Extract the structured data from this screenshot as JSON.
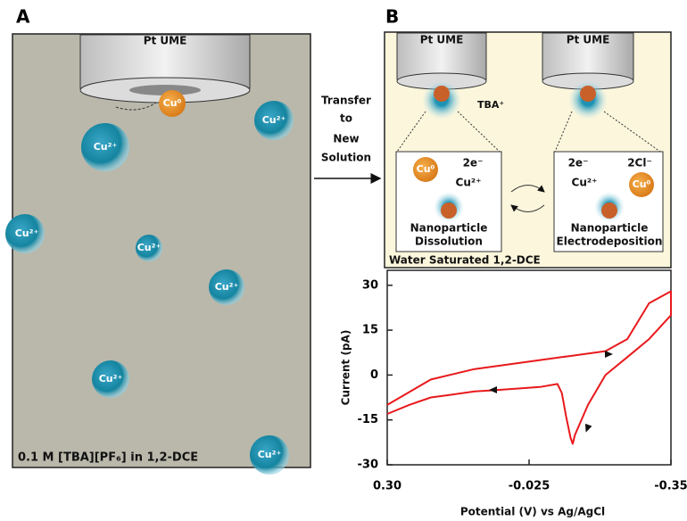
{
  "panel_a": {
    "label": "A",
    "electrode_label": "Pt UME",
    "particle_label": "Cu⁰",
    "ions": [
      "Cu²⁺",
      "Cu²⁺",
      "Cu²⁺",
      "Cu²⁺",
      "Cu²⁺",
      "Cu²⁺",
      "Cu²⁺"
    ],
    "caption": "0.1 M [TBA][PF₆] in 1,2-DCE"
  },
  "transfer_text": [
    "Transfer",
    "to",
    "New",
    "Solution"
  ],
  "panel_b": {
    "label": "B",
    "electrode_labels": [
      "Pt UME",
      "Pt UME"
    ],
    "cation_label": "TBA⁺",
    "dissolution": {
      "particle": "Cu⁰",
      "electrons": "2e⁻",
      "ion": "Cu²⁺",
      "caption": [
        "Nanoparticle",
        "Dissolution"
      ]
    },
    "deposition": {
      "electrons": "2e⁻",
      "chloride": "2Cl⁻",
      "ion": "Cu²⁺",
      "particle": "Cu⁰",
      "caption": [
        "Nanoparticle",
        "Electrodeposition"
      ]
    },
    "solvent_label": "Water Saturated 1,2-DCE"
  },
  "chart_data": {
    "type": "line",
    "x_label": "Potential (V) vs Ag/AgCl",
    "y_label": "Current (pA)",
    "xlim": [
      0.3,
      -0.35
    ],
    "ylim": [
      -30,
      35
    ],
    "xticks": [
      {
        "value": 0.3,
        "label": "0.30"
      },
      -0.025,
      -0.35
    ],
    "yticks": [
      -30,
      -15,
      0,
      15,
      30
    ],
    "series": [
      {
        "color": "#e8191c",
        "x": [
          0.3,
          0.25,
          0.2,
          0.15,
          0.1,
          0.05,
          0.0,
          -0.05,
          -0.09,
          -0.1,
          -0.11,
          -0.12,
          -0.125,
          -0.13,
          -0.16,
          -0.2,
          -0.25,
          -0.3,
          -0.35,
          -0.35,
          -0.3,
          -0.25,
          -0.2,
          -0.1,
          0.0,
          0.1,
          0.2,
          0.3
        ],
        "values": [
          -13,
          -10,
          -7.5,
          -6.5,
          -5.5,
          -5,
          -4.5,
          -4,
          -3,
          -6,
          -14,
          -21,
          -23,
          -20,
          -10,
          0,
          6,
          12,
          20,
          28,
          24,
          12,
          8,
          6,
          4,
          2,
          -1.5,
          -10
        ]
      }
    ]
  }
}
